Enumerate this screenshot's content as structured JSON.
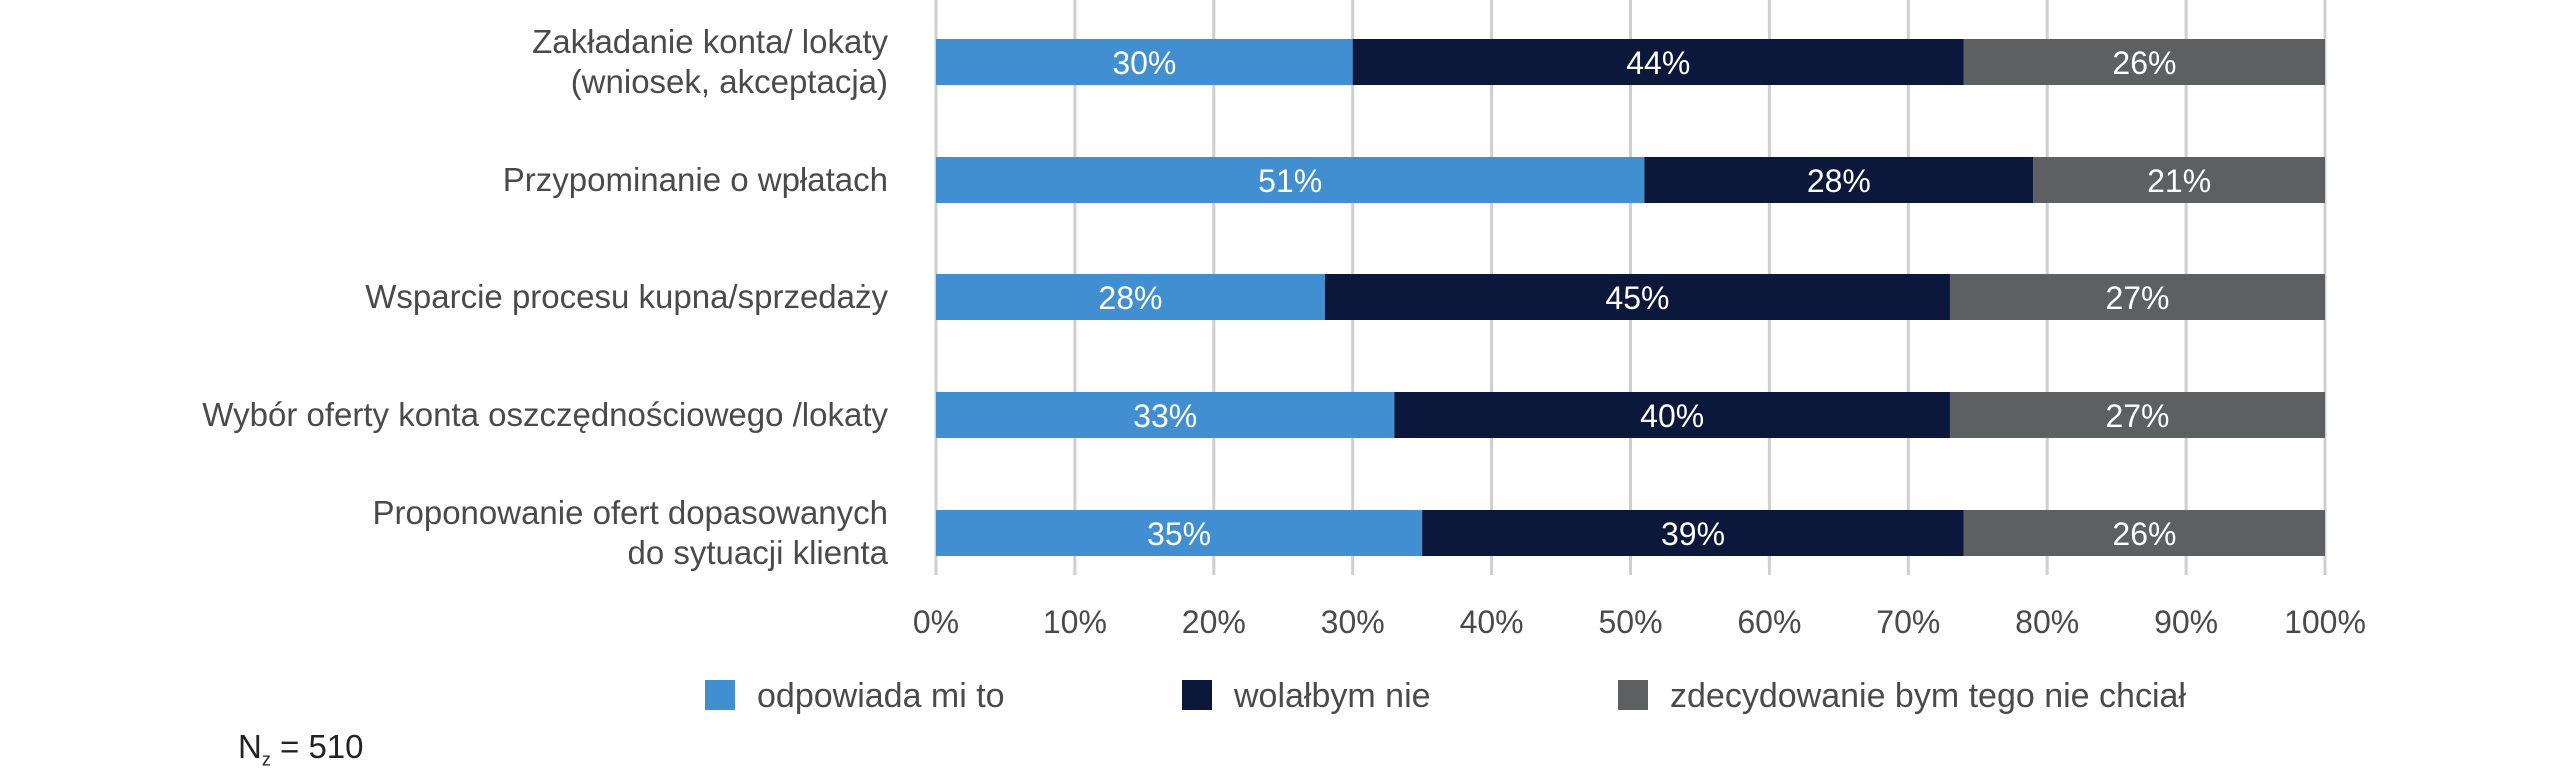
{
  "chart_data": {
    "type": "bar",
    "orientation": "horizontal",
    "stacked": true,
    "categories": [
      [
        "Zakładanie konta/ lokaty",
        "(wniosek, akceptacja)"
      ],
      [
        "Przypominanie o wpłatach"
      ],
      [
        "Wsparcie procesu kupna/sprzedaży"
      ],
      [
        "Wybór oferty konta oszczędnościowego /lokaty"
      ],
      [
        "Proponowanie ofert dopasowanych",
        "do sytuacji klienta"
      ]
    ],
    "series": [
      {
        "name": "odpowiada mi to",
        "color": "#418fd0",
        "values": [
          30,
          51,
          28,
          33,
          35
        ],
        "labels": [
          "30%",
          "51%",
          "28%",
          "33%",
          "35%"
        ]
      },
      {
        "name": "wolałbym nie",
        "color": "#0c183b",
        "values": [
          44,
          28,
          45,
          40,
          39
        ],
        "labels": [
          "44%",
          "28%",
          "45%",
          "40%",
          "39%"
        ]
      },
      {
        "name": "zdecydowanie bym tego nie chciał",
        "color": "#5e5f63",
        "values": [
          26,
          21,
          27,
          27,
          26
        ],
        "labels": [
          "26%",
          "21%",
          "27%",
          "27%",
          "26%"
        ]
      }
    ],
    "xlim": [
      0,
      100
    ],
    "x_ticks": [
      "0%",
      "10%",
      "20%",
      "30%",
      "40%",
      "50%",
      "60%",
      "70%",
      "80%",
      "90%",
      "100%"
    ],
    "grid": true,
    "legend_position": "bottom",
    "title": "",
    "xlabel": "",
    "ylabel": ""
  },
  "note": {
    "base": "N",
    "sub": "z",
    "rest": " = 510"
  }
}
